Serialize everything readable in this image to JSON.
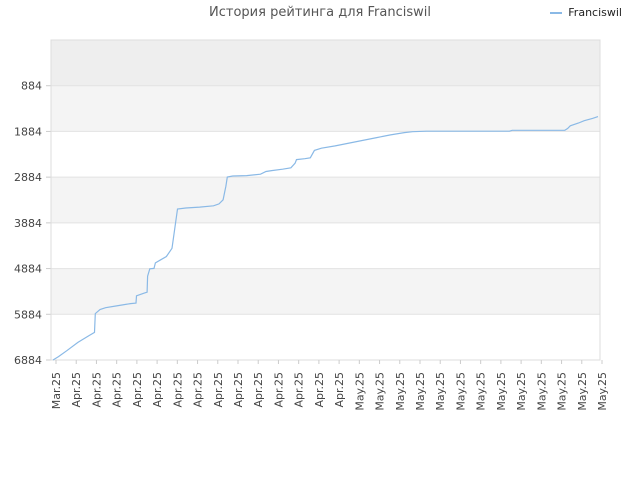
{
  "chart_data": {
    "type": "line",
    "title": "История рейтинга для Franciswil",
    "xlabel": "",
    "ylabel": "",
    "y_inverted": true,
    "ylim": [
      6884,
      -116
    ],
    "y_ticks": [
      "884",
      "1884",
      "2884",
      "3884",
      "4884",
      "5884",
      "6884"
    ],
    "x_tick_labels": [
      "Mar.25",
      "Apr.25",
      "Apr.25",
      "Apr.25",
      "Apr.25",
      "Apr.25",
      "Apr.25",
      "Apr.25",
      "Apr.25",
      "Apr.25",
      "Apr.25",
      "Apr.25",
      "Apr.25",
      "Apr.25",
      "Apr.25",
      "May.25",
      "May.25",
      "May.25",
      "May.25",
      "May.25",
      "May.25",
      "May.25",
      "May.25",
      "May.25",
      "May.25",
      "May.25",
      "May.25",
      "May.25"
    ],
    "grid": true,
    "legend": "top-right",
    "series": [
      {
        "name": "Franciswil",
        "color": "#8ab9e6",
        "points": [
          [
            0,
            6884
          ],
          [
            2,
            6810
          ],
          [
            5,
            6680
          ],
          [
            9,
            6500
          ],
          [
            13,
            6350
          ],
          [
            15,
            6280
          ],
          [
            15.3,
            5870
          ],
          [
            17,
            5780
          ],
          [
            19,
            5740
          ],
          [
            23,
            5700
          ],
          [
            28,
            5650
          ],
          [
            30,
            5640
          ],
          [
            30.2,
            5480
          ],
          [
            33,
            5420
          ],
          [
            34,
            5400
          ],
          [
            34.2,
            5050
          ],
          [
            35,
            4890
          ],
          [
            36.5,
            4880
          ],
          [
            37,
            4760
          ],
          [
            39,
            4690
          ],
          [
            41,
            4620
          ],
          [
            43,
            4440
          ],
          [
            45,
            3580
          ],
          [
            48,
            3560
          ],
          [
            53,
            3540
          ],
          [
            58,
            3510
          ],
          [
            60,
            3470
          ],
          [
            61.5,
            3380
          ],
          [
            62.5,
            3080
          ],
          [
            63,
            2880
          ],
          [
            65,
            2860
          ],
          [
            70,
            2850
          ],
          [
            75,
            2820
          ],
          [
            77,
            2760
          ],
          [
            79,
            2740
          ],
          [
            83,
            2710
          ],
          [
            86,
            2680
          ],
          [
            87.5,
            2580
          ],
          [
            88,
            2500
          ],
          [
            91,
            2480
          ],
          [
            93,
            2460
          ],
          [
            94.5,
            2300
          ],
          [
            97,
            2250
          ],
          [
            102,
            2200
          ],
          [
            107,
            2140
          ],
          [
            112,
            2080
          ],
          [
            117,
            2020
          ],
          [
            122,
            1960
          ],
          [
            127,
            1910
          ],
          [
            130,
            1890
          ],
          [
            135,
            1880
          ],
          [
            140,
            1880
          ],
          [
            165,
            1880
          ],
          [
            166,
            1860
          ],
          [
            185,
            1860
          ],
          [
            186,
            1820
          ],
          [
            187,
            1760
          ],
          [
            190,
            1700
          ],
          [
            192,
            1650
          ],
          [
            195,
            1600
          ],
          [
            197,
            1560
          ]
        ]
      }
    ]
  }
}
